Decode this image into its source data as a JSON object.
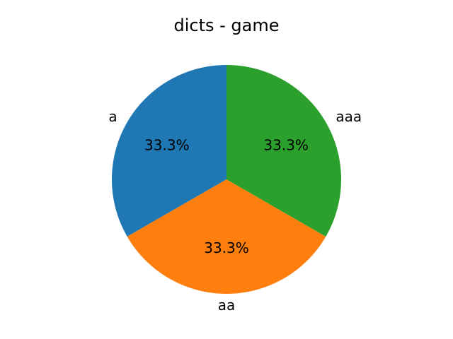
{
  "chart_data": {
    "type": "pie",
    "title": "dicts - game",
    "categories": [
      "a",
      "aa",
      "aaa"
    ],
    "values": [
      1,
      1,
      1
    ],
    "percent_labels": [
      "33.3%",
      "33.3%",
      "33.3%"
    ],
    "colors": [
      "#1f77b4",
      "#ff7f0e",
      "#2ca02c"
    ],
    "start_angle_deg": 90,
    "direction": "counterclockwise",
    "legend": "none"
  }
}
